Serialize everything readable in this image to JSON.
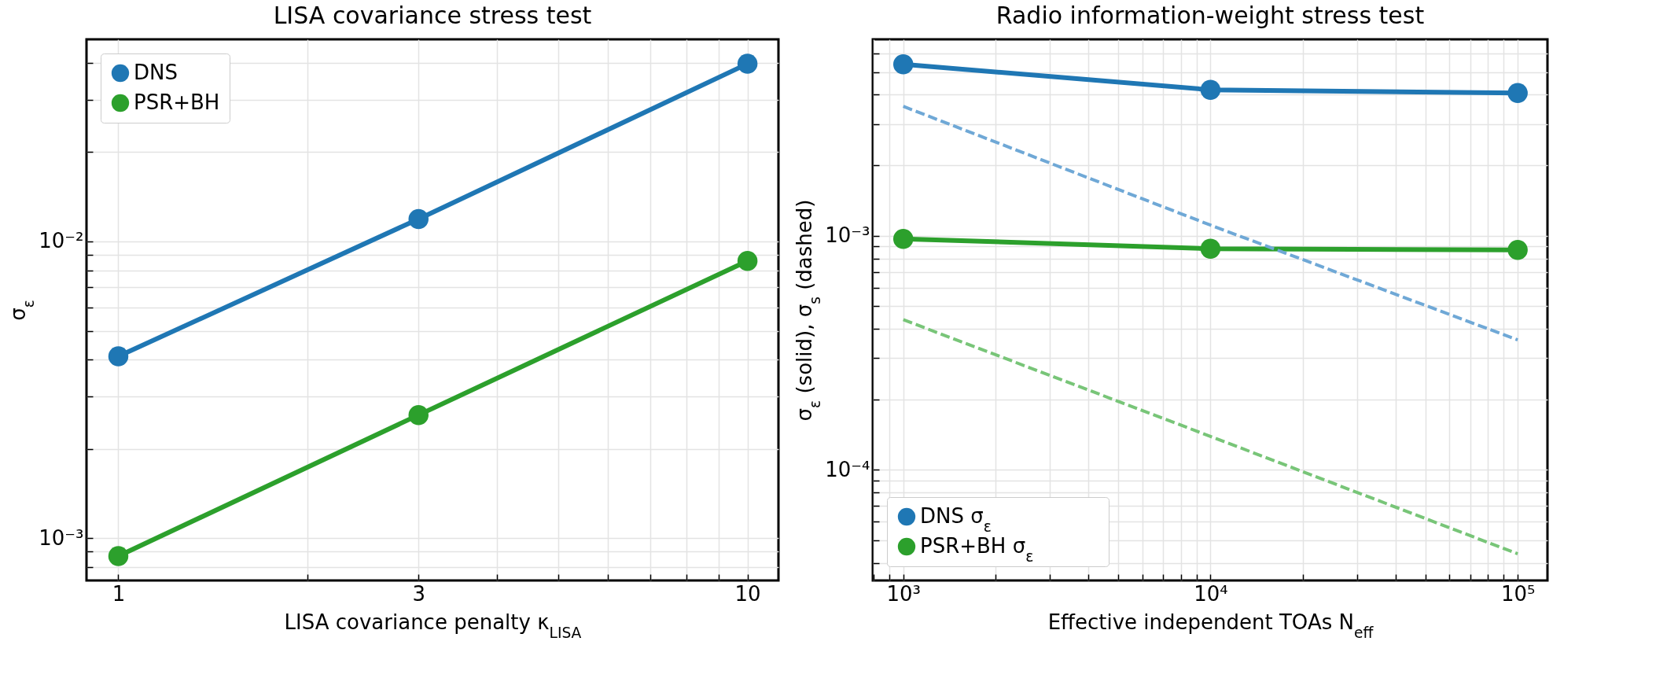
{
  "chart_data": [
    {
      "type": "line",
      "title": "LISA covariance stress test",
      "xlabel": "LISA covariance penalty κ$_{LISA}$",
      "ylabel": "σ$_{ε}$",
      "log": "xy",
      "grid": true,
      "legend": "top left",
      "marker": "circle",
      "line_style": "solid",
      "x": [
        1,
        3,
        10
      ],
      "series": [
        {
          "name": "DNS",
          "color": "#1f77b4",
          "values": [
            0.0041,
            0.0119,
            0.0397
          ]
        },
        {
          "name": "PSR+BH",
          "color": "#2ca02c",
          "values": [
            0.00087,
            0.0026,
            0.0086
          ]
        }
      ],
      "xlim": [
        0.89,
        11.2
      ],
      "ylim": [
        0.00072,
        0.048
      ],
      "xticks": [
        1,
        {
          "value": 2,
          "label": null
        },
        3,
        {
          "value": 4,
          "label": null
        },
        {
          "value": 5,
          "label": null
        },
        {
          "value": 6,
          "label": null
        },
        {
          "value": 7,
          "label": null
        },
        {
          "value": 8,
          "label": null
        },
        {
          "value": 9,
          "label": null
        },
        10
      ],
      "yticks": [
        {
          "value": 0.0008,
          "label": null
        },
        {
          "value": 0.0009,
          "label": null
        },
        {
          "value": 0.001,
          "label": "10⁻³"
        },
        {
          "value": 0.002,
          "label": null
        },
        {
          "value": 0.003,
          "label": null
        },
        {
          "value": 0.004,
          "label": null
        },
        {
          "value": 0.005,
          "label": null
        },
        {
          "value": 0.006,
          "label": null
        },
        {
          "value": 0.007,
          "label": null
        },
        {
          "value": 0.008,
          "label": null
        },
        {
          "value": 0.009,
          "label": null
        },
        {
          "value": 0.01,
          "label": "10⁻²"
        },
        {
          "value": 0.02,
          "label": null
        },
        {
          "value": 0.03,
          "label": null
        },
        {
          "value": 0.04,
          "label": null
        }
      ]
    },
    {
      "type": "line",
      "title": "Radio information-weight stress test",
      "xlabel": "Effective independent TOAs N$_{eff}$",
      "ylabel": "σ$_{ε}$ (solid), σ$_{s}$ (dashed)",
      "log": "xy",
      "grid": true,
      "legend": "bottom left",
      "marker": "circle",
      "line_style": "solid",
      "x": [
        1000,
        10000,
        100000
      ],
      "series": [
        {
          "name": "DNS σ$_{ε}$",
          "color": "#1f77b4",
          "values": [
            0.0054,
            0.0042,
            0.00407
          ]
        },
        {
          "name": "PSR+BH σ$_{ε}$",
          "color": "#2ca02c",
          "values": [
            0.00097,
            0.00088,
            0.00087
          ]
        },
        {
          "color": "#6fa8d6",
          "values": [
            0.00357,
            0.00111,
            0.000359
          ],
          "line_style": "dashed",
          "marker": "none"
        },
        {
          "color": "#78c578",
          "values": [
            0.000438,
            0.000139,
            4.38e-05
          ],
          "line_style": "dashed",
          "marker": "none"
        }
      ],
      "xlim": [
        796,
        125000
      ],
      "ylim": [
        3.37e-05,
        0.0069
      ],
      "xticks": [
        {
          "value": 800,
          "label": null
        },
        {
          "value": 900,
          "label": null
        },
        {
          "value": 1000,
          "label": "10³"
        },
        {
          "value": 2000,
          "label": null
        },
        {
          "value": 3000,
          "label": null
        },
        {
          "value": 4000,
          "label": null
        },
        {
          "value": 5000,
          "label": null
        },
        {
          "value": 6000,
          "label": null
        },
        {
          "value": 7000,
          "label": null
        },
        {
          "value": 8000,
          "label": null
        },
        {
          "value": 9000,
          "label": null
        },
        {
          "value": 10000,
          "label": "10⁴"
        },
        {
          "value": 20000,
          "label": null
        },
        {
          "value": 30000,
          "label": null
        },
        {
          "value": 40000,
          "label": null
        },
        {
          "value": 50000,
          "label": null
        },
        {
          "value": 60000,
          "label": null
        },
        {
          "value": 70000,
          "label": null
        },
        {
          "value": 80000,
          "label": null
        },
        {
          "value": 90000,
          "label": null
        },
        {
          "value": 100000,
          "label": "10⁵"
        }
      ],
      "yticks": [
        {
          "value": 4e-05,
          "label": null
        },
        {
          "value": 5e-05,
          "label": null
        },
        {
          "value": 6e-05,
          "label": null
        },
        {
          "value": 7e-05,
          "label": null
        },
        {
          "value": 8e-05,
          "label": null
        },
        {
          "value": 9e-05,
          "label": null
        },
        {
          "value": 0.0001,
          "label": "10⁻⁴"
        },
        {
          "value": 0.0002,
          "label": null
        },
        {
          "value": 0.0003,
          "label": null
        },
        {
          "value": 0.0004,
          "label": null
        },
        {
          "value": 0.0005,
          "label": null
        },
        {
          "value": 0.0006,
          "label": null
        },
        {
          "value": 0.0007,
          "label": null
        },
        {
          "value": 0.0008,
          "label": null
        },
        {
          "value": 0.0009,
          "label": null
        },
        {
          "value": 0.001,
          "label": "10⁻³"
        },
        {
          "value": 0.002,
          "label": null
        },
        {
          "value": 0.003,
          "label": null
        },
        {
          "value": 0.004,
          "label": null
        },
        {
          "value": 0.005,
          "label": null
        },
        {
          "value": 0.006,
          "label": null
        }
      ]
    }
  ]
}
